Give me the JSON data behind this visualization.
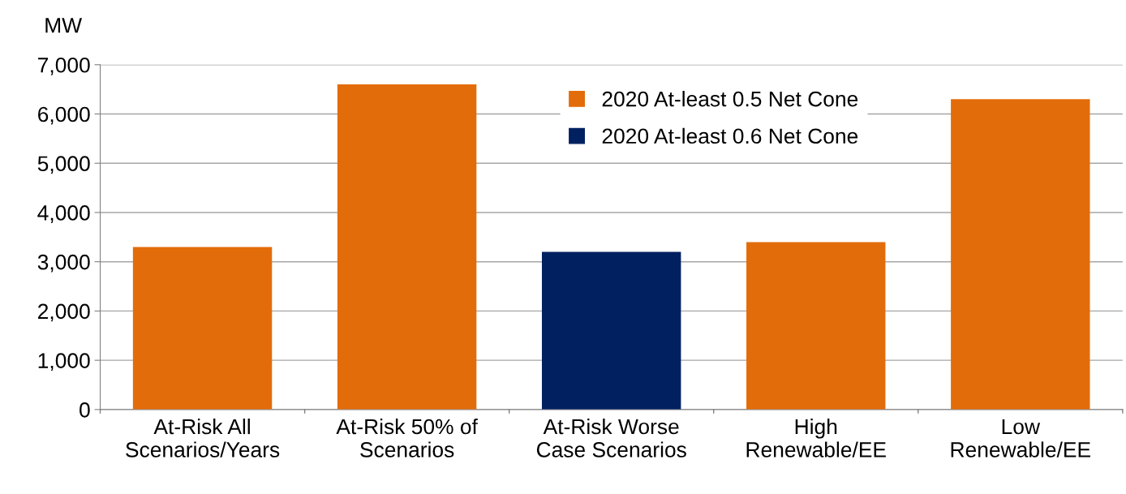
{
  "chart_data": {
    "type": "bar",
    "ylabel": "MW",
    "categories": [
      "At-Risk All\nScenarios/Years",
      "At-Risk 50% of\nScenarios",
      "At-Risk Worse\nCase Scenarios",
      "High\nRenewable/EE",
      "Low\nRenewable/EE"
    ],
    "series": [
      {
        "name": "2020 At-least 0.5 Net Cone",
        "color": "#e36c0a",
        "values": [
          3300,
          6600,
          null,
          3400,
          6300
        ]
      },
      {
        "name": "2020 At-least 0.6 Net Cone",
        "color": "#002060",
        "values": [
          null,
          null,
          3200,
          null,
          null
        ]
      }
    ],
    "ylim": [
      0,
      7000
    ],
    "yticks": [
      0,
      {
        "value": 1000,
        "label": "1,000"
      },
      {
        "value": 2000,
        "label": "2,000"
      },
      {
        "value": 3000,
        "label": "3,000"
      },
      {
        "value": 4000,
        "label": "4,000"
      },
      {
        "value": 5000,
        "label": "5,000"
      },
      {
        "value": 6000,
        "label": "6,000"
      },
      {
        "value": 7000,
        "label": "7,000"
      }
    ],
    "grid": "y",
    "legend": "top"
  }
}
